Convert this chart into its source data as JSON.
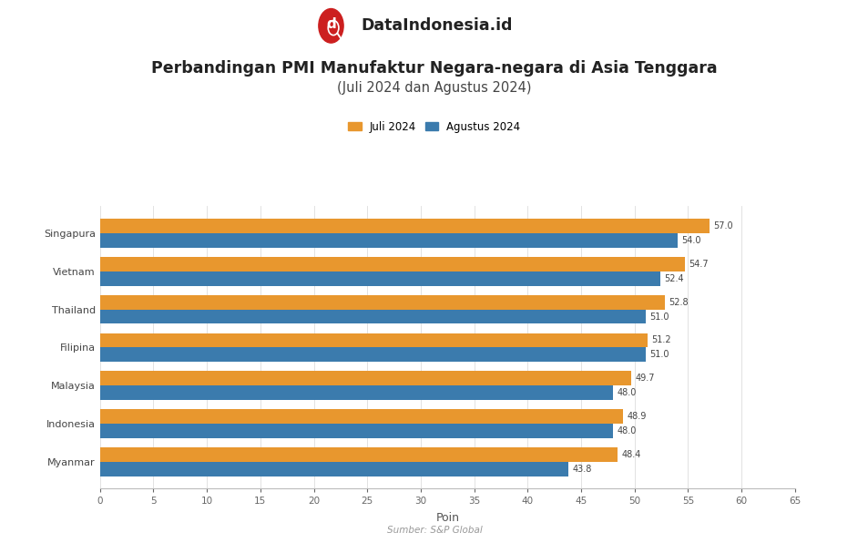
{
  "title_line1": "Perbandingan PMI Manufaktur Negara-negara di Asia Tenggara",
  "title_line2": "(Juli 2024 dan Agustus 2024)",
  "categories": [
    "Singapura",
    "Vietnam",
    "Thailand",
    "Filipina",
    "Malaysia",
    "Indonesia",
    "Myanmar"
  ],
  "juli_2024": [
    57.0,
    54.7,
    52.8,
    51.2,
    49.7,
    48.9,
    48.4
  ],
  "agustus_2024": [
    54.0,
    52.4,
    51.0,
    51.0,
    48.0,
    48.0,
    43.8
  ],
  "color_juli": "#E8972E",
  "color_agustus": "#3B7BAD",
  "xlabel": "Poin",
  "legend_juli": "Juli 2024",
  "legend_agustus": "Agustus 2024",
  "xlim": [
    0,
    65
  ],
  "xticks": [
    0,
    5,
    10,
    15,
    20,
    25,
    30,
    35,
    40,
    45,
    50,
    55,
    60,
    65
  ],
  "source": "Sumber: S&P Global",
  "background_color": "#ffffff",
  "logo_text": "DataIndonesia.id",
  "logo_color": "#cc1f1f"
}
